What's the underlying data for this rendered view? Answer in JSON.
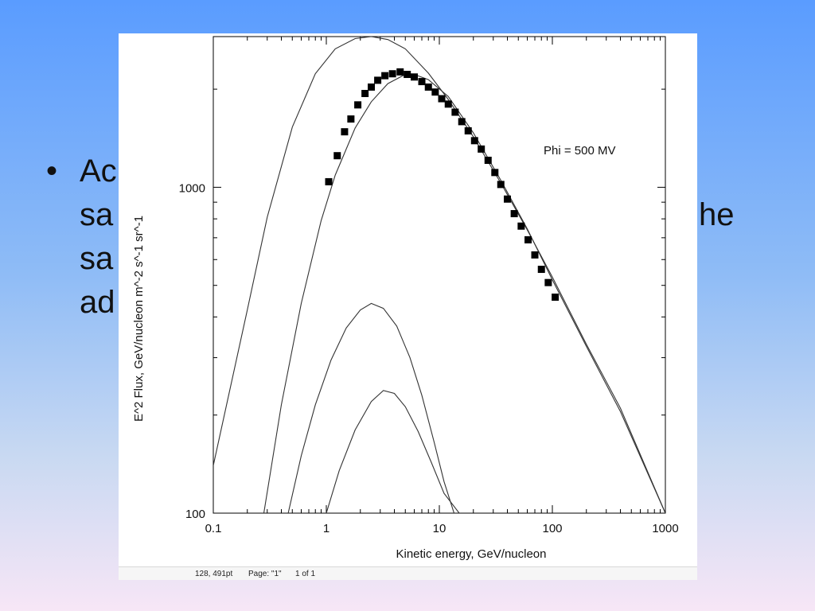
{
  "slide": {
    "bullet_symbol": "•",
    "lines": [
      "Ac",
      "sa",
      "he",
      "sa",
      "ad"
    ]
  },
  "status_bar": {
    "position": "128, 491pt",
    "page": "Page: \"1\"",
    "of": "1 of 1"
  },
  "chart_data": {
    "type": "line",
    "title": "",
    "annotation": "Phi = 500 MV",
    "xlabel": "Kinetic energy, GeV/nucleon",
    "ylabel": "E^2 Flux, GeV/nucleon m^-2 s^-1 sr^-1",
    "xscale": "log",
    "yscale": "log",
    "xlim": [
      0.1,
      1000
    ],
    "ylim": [
      100,
      2900
    ],
    "x_ticks": [
      0.1,
      1,
      10,
      100,
      1000
    ],
    "x_tick_labels": [
      "0.1",
      "1",
      "10",
      "100",
      "1000"
    ],
    "y_ticks": [
      100,
      1000
    ],
    "y_tick_labels": [
      "100",
      "1000"
    ],
    "series": [
      {
        "style": "line",
        "x": [
          0.1,
          0.2,
          0.3,
          0.5,
          0.8,
          1.2,
          1.8,
          2.5,
          3.5,
          5,
          8,
          12,
          20,
          35,
          60,
          100,
          200,
          400,
          1000
        ],
        "y": [
          140,
          420,
          810,
          1530,
          2230,
          2660,
          2860,
          2900,
          2840,
          2660,
          2240,
          1860,
          1430,
          1030,
          740,
          530,
          330,
          210,
          100
        ]
      },
      {
        "style": "line",
        "x": [
          0.28,
          0.4,
          0.6,
          0.9,
          1.2,
          1.8,
          2.5,
          3.5,
          5,
          6,
          8,
          12,
          20,
          35,
          60,
          100,
          200,
          400,
          1000
        ],
        "y": [
          100,
          215,
          440,
          790,
          1090,
          1520,
          1830,
          2080,
          2220,
          2220,
          2140,
          1900,
          1470,
          1050,
          745,
          520,
          325,
          205,
          100
        ]
      },
      {
        "style": "line",
        "x": [
          0.46,
          0.6,
          0.8,
          1.1,
          1.5,
          2,
          2.5,
          3.2,
          4.2,
          5.5,
          7,
          9,
          11,
          13.5
        ],
        "y": [
          100,
          150,
          215,
          295,
          370,
          420,
          440,
          425,
          375,
          300,
          230,
          165,
          125,
          100
        ]
      },
      {
        "style": "line",
        "x": [
          1.0,
          1.3,
          1.8,
          2.5,
          3.2,
          4,
          5,
          6.5,
          8.5,
          11,
          15
        ],
        "y": [
          100,
          135,
          180,
          220,
          238,
          233,
          212,
          178,
          143,
          115,
          100
        ]
      },
      {
        "style": "markers",
        "marker": "square",
        "x": [
          1.05,
          1.25,
          1.45,
          1.65,
          1.9,
          2.2,
          2.5,
          2.85,
          3.3,
          3.85,
          4.5,
          5.2,
          6.0,
          7.0,
          8.0,
          9.2,
          10.5,
          12.0,
          13.8,
          15.8,
          18.0,
          20.5,
          23.5,
          27.0,
          31.0,
          35.0,
          40.0,
          46.0,
          53.0,
          61.0,
          70.0,
          80.0,
          92.0,
          106.0
        ],
        "y": [
          1040,
          1250,
          1480,
          1620,
          1790,
          1940,
          2030,
          2130,
          2200,
          2230,
          2260,
          2220,
          2180,
          2110,
          2030,
          1960,
          1870,
          1800,
          1700,
          1590,
          1490,
          1390,
          1310,
          1210,
          1110,
          1020,
          920,
          830,
          760,
          690,
          620,
          560,
          510,
          460
        ]
      }
    ],
    "grid": false,
    "legend": "none"
  }
}
